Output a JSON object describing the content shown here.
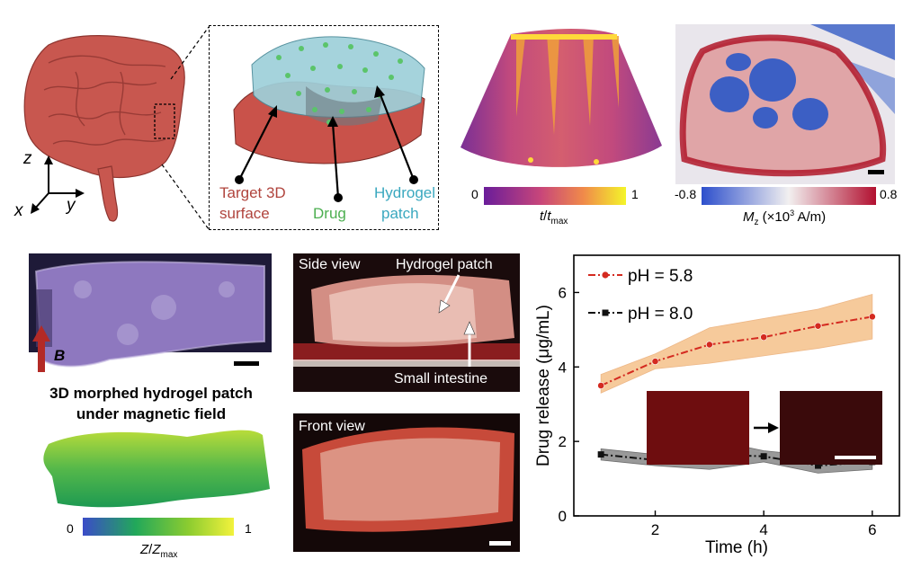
{
  "panel_a": {
    "axis_z": "z",
    "axis_x": "x",
    "axis_y": "y",
    "label_target": [
      "Target 3D",
      "surface"
    ],
    "label_drug": "Drug",
    "label_hydrogel": [
      "Hydrogel",
      "patch"
    ]
  },
  "thickness_map": {
    "cb_min": "0",
    "cb_max": "1",
    "cb_label_t": "t",
    "cb_label_sep": "/",
    "cb_label_tsub": "t",
    "cb_label_sub": "max"
  },
  "magnetization_map": {
    "cb_min": "-0.8",
    "cb_max": "0.8",
    "cb_label_m": "M",
    "cb_label_sub": "z",
    "cb_label_rest1": "(×10",
    "cb_label_exp": "3",
    "cb_label_rest2": " A/m)"
  },
  "panel_b": {
    "field_label": "B",
    "caption_line1": "3D morphed hydrogel patch",
    "caption_line2": "under magnetic field",
    "cb_min": "0",
    "cb_max": "1",
    "cb_label_z": "Z",
    "cb_label_sep": "/",
    "cb_label_zsub": "Z",
    "cb_label_sub": "max"
  },
  "panel_c": {
    "side_view": "Side view",
    "hydrogel_patch": "Hydrogel patch",
    "small_intestine": "Small intestine",
    "front_view": "Front view"
  },
  "colors": {
    "ph58": "#d42a20",
    "ph80": "#111111",
    "band58": "#f3b97a",
    "band80": "#888888"
  },
  "chart_data": {
    "type": "line",
    "xlabel": "Time (h)",
    "ylabel": "Drug release (μg/mL)",
    "xlim": [
      0.5,
      6.5
    ],
    "ylim": [
      0,
      7
    ],
    "xticks": [
      2,
      4,
      6
    ],
    "yticks": [
      0,
      2,
      4,
      6
    ],
    "x": [
      1,
      2,
      3,
      4,
      5,
      6
    ],
    "series": [
      {
        "name": "pH = 5.8",
        "values": [
          3.5,
          4.15,
          4.6,
          4.8,
          5.1,
          5.35
        ],
        "band_low": [
          3.3,
          3.95,
          4.1,
          4.3,
          4.5,
          4.75
        ],
        "band_high": [
          3.8,
          4.35,
          5.05,
          5.3,
          5.55,
          5.95
        ]
      },
      {
        "name": "pH = 8.0",
        "values": [
          1.65,
          1.5,
          1.65,
          1.6,
          1.35,
          1.45
        ],
        "band_low": [
          1.5,
          1.35,
          1.25,
          1.45,
          1.15,
          1.25
        ],
        "band_high": [
          1.8,
          1.65,
          2.05,
          1.75,
          1.6,
          1.65
        ]
      }
    ],
    "legend_position": "top-left",
    "grid": false
  }
}
